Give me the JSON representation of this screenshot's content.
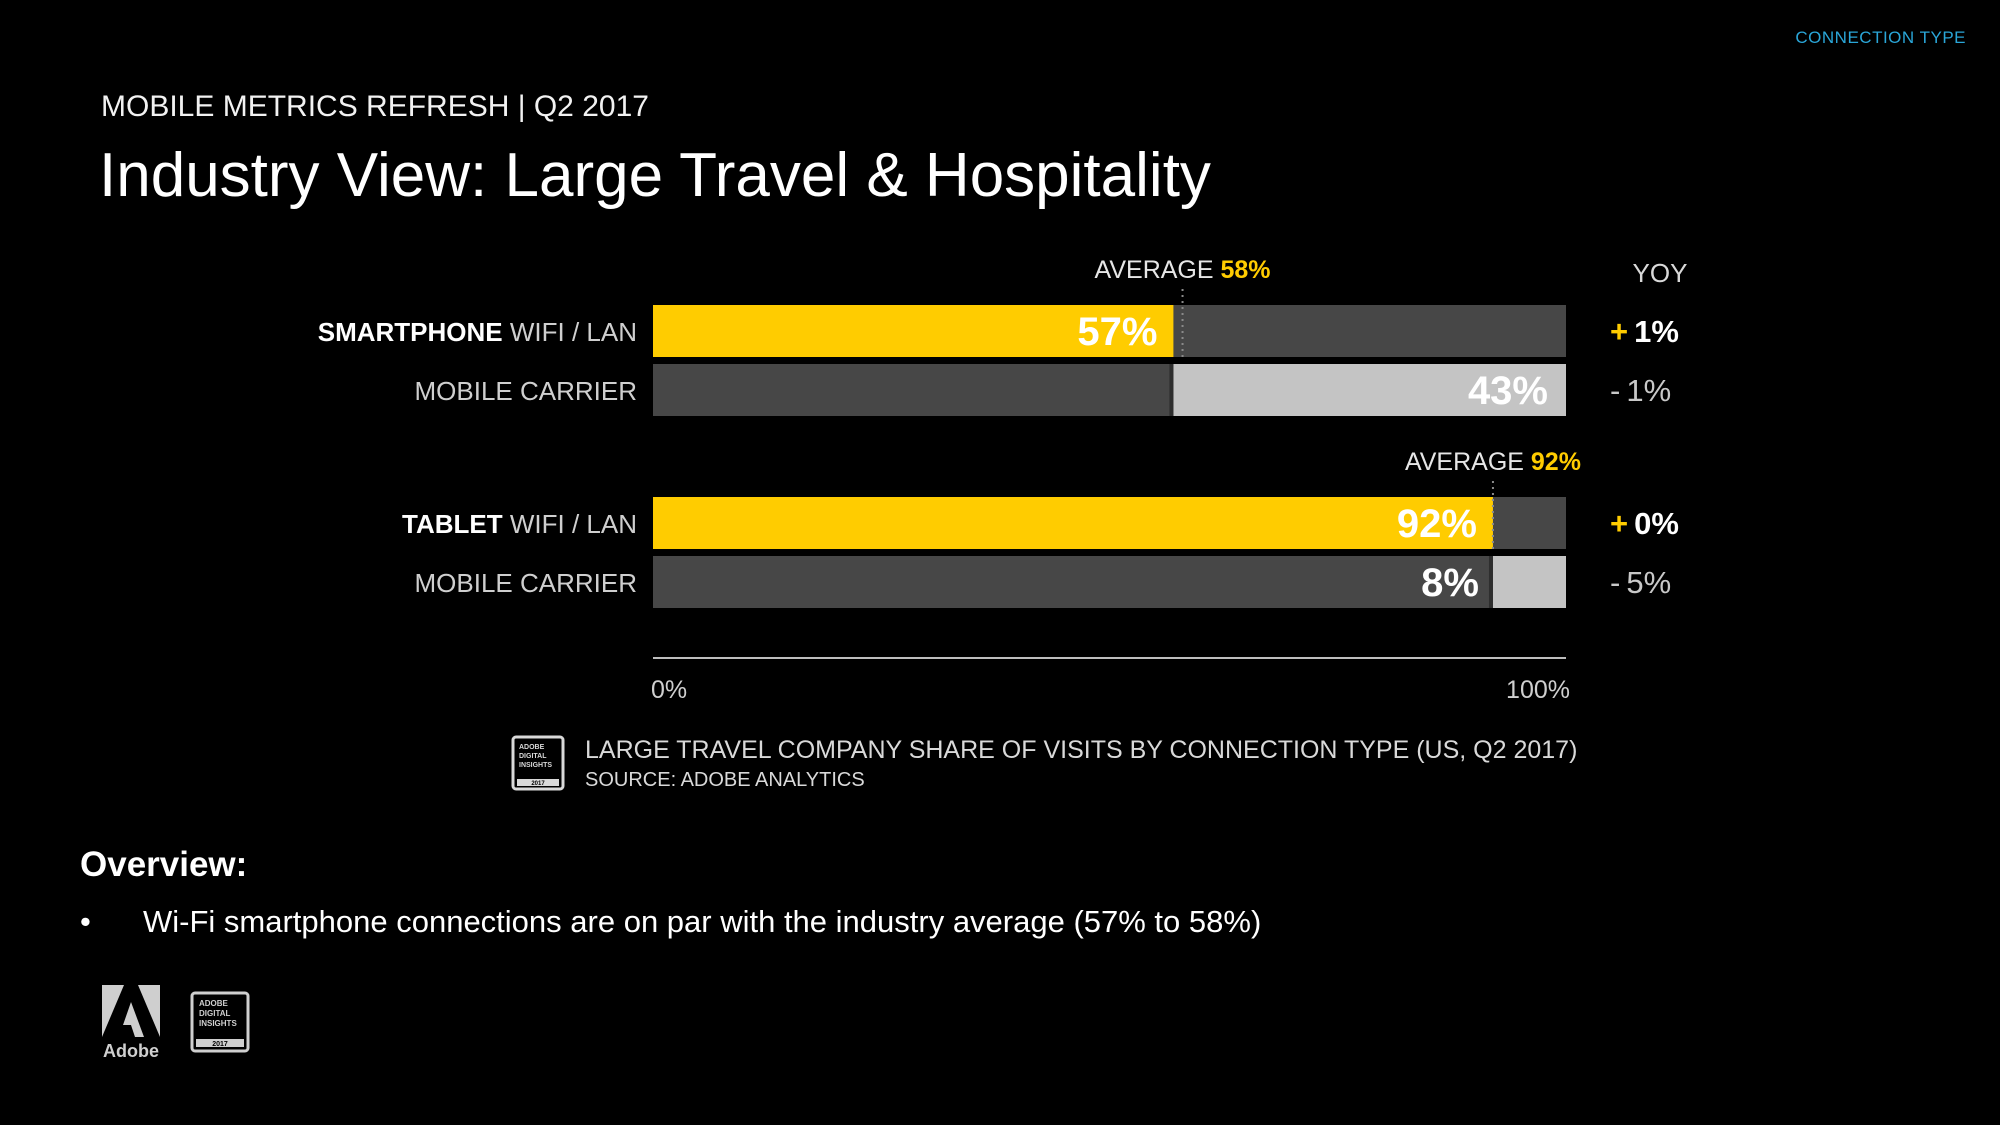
{
  "section_tag": "CONNECTION TYPE",
  "header": {
    "series": "MOBILE METRICS REFRESH | Q2 2017",
    "title": "Industry View: Large Travel & Hospitality"
  },
  "chart_data": {
    "type": "bar",
    "orientation": "horizontal",
    "stacked": true,
    "xlim": [
      0,
      100
    ],
    "x_ticks": [
      "0%",
      "100%"
    ],
    "yoy_header": "YOY",
    "groups": [
      {
        "device": "SMARTPHONE",
        "average_label": "AVERAGE",
        "average_value": 58,
        "average_text": "58%",
        "bars": [
          {
            "category": "WIFI / LAN",
            "value": 57,
            "value_text": "57%",
            "yoy_sign": "+",
            "yoy_value": "1%",
            "highlight": true
          },
          {
            "category": "MOBILE CARRIER",
            "value": 43,
            "value_text": "43%",
            "yoy_sign": "-",
            "yoy_value": "1%",
            "highlight": false
          }
        ]
      },
      {
        "device": "TABLET",
        "average_label": "AVERAGE",
        "average_value": 92,
        "average_text": "92%",
        "bars": [
          {
            "category": "WIFI / LAN",
            "value": 92,
            "value_text": "92%",
            "yoy_sign": "+",
            "yoy_value": "0%",
            "highlight": true
          },
          {
            "category": "MOBILE CARRIER",
            "value": 8,
            "value_text": "8%",
            "yoy_sign": "-",
            "yoy_value": "5%",
            "highlight": false
          }
        ]
      }
    ],
    "colors": {
      "wifi": "#ffcc00",
      "carrier_fill": "#c4c4c4",
      "track": "#474747",
      "accent": "#ffcc00",
      "muted": "#c8c8c8"
    }
  },
  "caption": {
    "main": "LARGE TRAVEL COMPANY SHARE OF VISITS BY CONNECTION TYPE (US, Q2 2017)",
    "source": "SOURCE: ADOBE ANALYTICS"
  },
  "badge": {
    "lines": [
      "ADOBE",
      "DIGITAL",
      "INSIGHTS"
    ],
    "year": "2017"
  },
  "overview": {
    "heading": "Overview:",
    "bullets": [
      "Wi-Fi smartphone connections are on par with the industry average (57% to 58%)"
    ]
  },
  "footer": {
    "brand": "Adobe"
  }
}
